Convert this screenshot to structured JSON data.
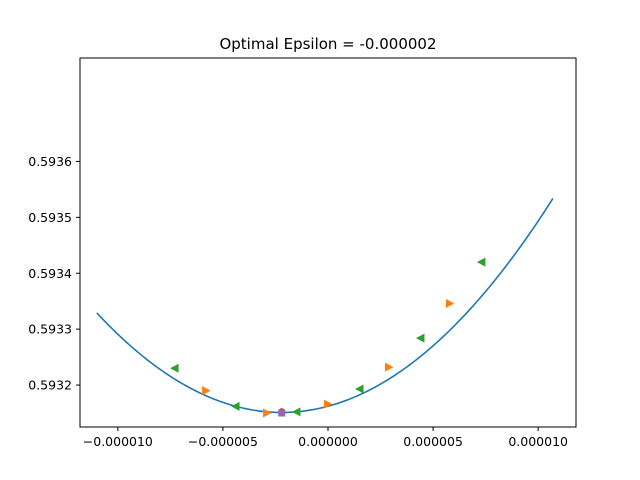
{
  "chart_data": {
    "type": "line",
    "title": "Optimal Epsilon = -0.000002",
    "xlabel": "",
    "ylabel": "",
    "xlim": [
      -1.18e-05,
      1.18e-05
    ],
    "ylim": [
      0.593125,
      0.593785
    ],
    "x_ticks": [
      -1e-05,
      -5e-06,
      0.0,
      5e-06,
      1e-05
    ],
    "x_tick_labels": [
      "−0.000010",
      "−0.000005",
      "0.000000",
      "0.000005",
      "0.000010"
    ],
    "y_ticks": [
      0.5932,
      0.5933,
      0.5934,
      0.5935,
      0.5936
    ],
    "y_tick_labels": [
      "0.5932",
      "0.5933",
      "0.5934",
      "0.5935",
      "0.5936"
    ],
    "grid": false,
    "legend": "none",
    "curve": {
      "color": "#1f77b4",
      "x_min": -1.1e-05,
      "x_max": 1.07e-05,
      "vertex_x": -2.2e-06,
      "vertex_y": 0.593151,
      "curvature": 2300000.0
    },
    "series": [
      {
        "marker": "triangle-left",
        "color": "#2ca02c",
        "x": [
          -7.3e-06,
          -4.4e-06,
          -1.5e-06,
          1.5e-06,
          4.4e-06,
          7.3e-06
        ],
        "y": [
          0.59323,
          0.593162,
          0.593152,
          0.593193,
          0.593284,
          0.59342
        ]
      },
      {
        "marker": "triangle-right",
        "color": "#ff7f0e",
        "x": [
          -5.8e-06,
          -2.9e-06,
          0.0,
          2.9e-06,
          5.8e-06
        ],
        "y": [
          0.59319,
          0.59315,
          0.593166,
          0.593232,
          0.593346
        ]
      },
      {
        "marker": "circle",
        "color": "#d62728",
        "x": [
          -2.2e-06
        ],
        "y": [
          0.593152
        ]
      },
      {
        "marker": "square",
        "color": "#9467bd",
        "x": [
          -2.2e-06
        ],
        "y": [
          0.59315
        ]
      }
    ]
  }
}
